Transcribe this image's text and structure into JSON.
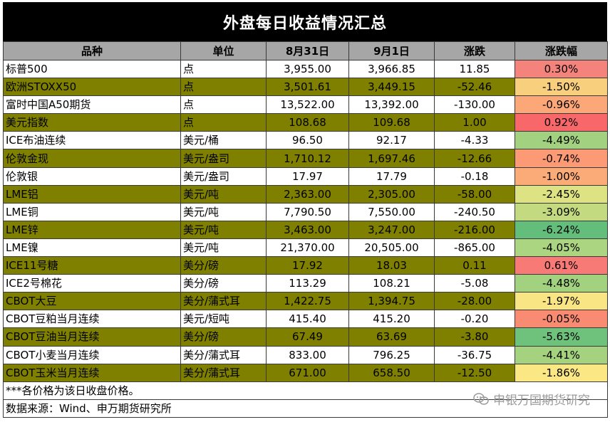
{
  "title": "外盘每日收益情况汇总",
  "headers": {
    "name": "品种",
    "unit": "单位",
    "d1": "8月31日",
    "d2": "9月1日",
    "chg": "涨跌",
    "pct": "涨跌幅"
  },
  "rows": [
    {
      "name": "标普500",
      "unit": "点",
      "d1": "3,955.00",
      "d2": "3,966.85",
      "chg": "11.85",
      "pct": "0.30%",
      "color": "#f4837c"
    },
    {
      "name": "欧洲STOXX50",
      "unit": "点",
      "d1": "3,501.61",
      "d2": "3,449.15",
      "chg": "-52.46",
      "pct": "-1.50%",
      "color": "#f8d07d"
    },
    {
      "name": "富时中国A50期货",
      "unit": "点",
      "d1": "13,522.00",
      "d2": "13,392.00",
      "chg": "-130.00",
      "pct": "-0.96%",
      "color": "#fba777"
    },
    {
      "name": "美元指数",
      "unit": "点",
      "d1": "108.68",
      "d2": "109.68",
      "chg": "1.00",
      "pct": "0.92%",
      "color": "#f8686b"
    },
    {
      "name": "ICE布油连续",
      "unit": "美元/桶",
      "d1": "96.50",
      "d2": "92.17",
      "chg": "-4.33",
      "pct": "-4.49%",
      "color": "#a2d27f"
    },
    {
      "name": "伦敦金现",
      "unit": "美元/盎司",
      "d1": "1,710.12",
      "d2": "1,697.46",
      "chg": "-12.66",
      "pct": "-0.74%",
      "color": "#fb9a75"
    },
    {
      "name": "伦敦银",
      "unit": "美元/盎司",
      "d1": "17.97",
      "d2": "17.79",
      "chg": "-0.18",
      "pct": "-1.00%",
      "color": "#fbab78"
    },
    {
      "name": "LME铝",
      "unit": "美元/吨",
      "d1": "2,363.00",
      "d2": "2,305.00",
      "chg": "-58.00",
      "pct": "-2.45%",
      "color": "#dde282"
    },
    {
      "name": "LME铜",
      "unit": "美元/吨",
      "d1": "7,790.50",
      "d2": "7,550.00",
      "chg": "-240.50",
      "pct": "-3.09%",
      "color": "#c4da81"
    },
    {
      "name": "LME锌",
      "unit": "美元/吨",
      "d1": "3,463.00",
      "d2": "3,247.00",
      "chg": "-216.00",
      "pct": "-6.24%",
      "color": "#63be7b"
    },
    {
      "name": "LME镍",
      "unit": "美元/吨",
      "d1": "21,370.00",
      "d2": "20,505.00",
      "chg": "-865.00",
      "pct": "-4.05%",
      "color": "#abd580"
    },
    {
      "name": "ICE11号糖",
      "unit": "美分/磅",
      "d1": "17.92",
      "d2": "18.03",
      "chg": "0.11",
      "pct": "0.61%",
      "color": "#f77a77"
    },
    {
      "name": "ICE2号棉花",
      "unit": "美分/磅",
      "d1": "113.29",
      "d2": "108.21",
      "chg": "-5.08",
      "pct": "-4.48%",
      "color": "#a2d27f"
    },
    {
      "name": "CBOT大豆",
      "unit": "美分/蒲式耳",
      "d1": "1,422.75",
      "d2": "1,394.75",
      "chg": "-28.00",
      "pct": "-1.97%",
      "color": "#f9e583"
    },
    {
      "name": "CBOT豆粕当月连续",
      "unit": "美元/短吨",
      "d1": "415.40",
      "d2": "415.20",
      "chg": "-0.20",
      "pct": "-0.05%",
      "color": "#f98b73"
    },
    {
      "name": "CBOT豆油当月连续",
      "unit": "美分/磅",
      "d1": "67.49",
      "d2": "63.69",
      "chg": "-3.80",
      "pct": "-5.63%",
      "color": "#6ec27c"
    },
    {
      "name": "CBOT小麦当月连续",
      "unit": "美分/蒲式耳",
      "d1": "833.00",
      "d2": "796.25",
      "chg": "-36.75",
      "pct": "-4.41%",
      "color": "#a4d27f"
    },
    {
      "name": "CBOT玉米当月连续",
      "unit": "美分/蒲式耳",
      "d1": "671.00",
      "d2": "658.50",
      "chg": "-12.50",
      "pct": "-1.86%",
      "color": "#fbe884"
    }
  ],
  "note": "***各价格为该日收盘价格。",
  "source": "数据来源：Wind、申万期货研究所",
  "watermark": "申银万国期货研究"
}
